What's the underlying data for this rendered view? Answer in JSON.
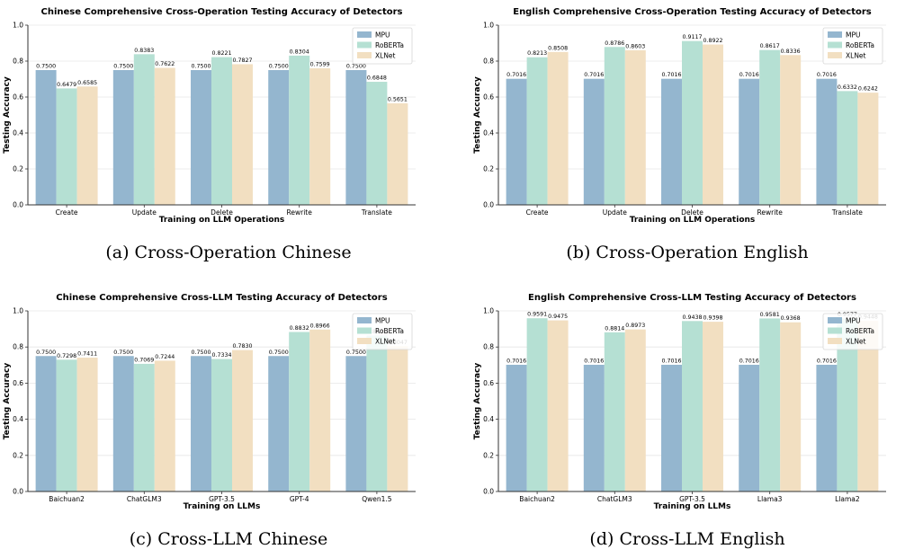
{
  "colors": {
    "MPU": "#94b6cf",
    "RoBERTa": "#b5e0d3",
    "XLNet": "#f2dfc1"
  },
  "captions": [
    "(a)  Cross-Operation Chinese",
    "(b)  Cross-Operation English",
    "(c)  Cross-LLM Chinese",
    "(d)  Cross-LLM English"
  ],
  "chart_data": [
    {
      "type": "bar",
      "title": "Chinese Comprehensive Cross-Operation Testing Accuracy of Detectors",
      "xlabel": "Training on LLM Operations",
      "ylabel": "Testing Accuracy",
      "ylim": [
        0,
        1.0
      ],
      "yticks": [
        "0.0",
        "0.2",
        "0.4",
        "0.6",
        "0.8",
        "1.0"
      ],
      "categories": [
        "Create",
        "Update",
        "Delete",
        "Rewrite",
        "Translate"
      ],
      "legend_position": "top-right",
      "series": [
        {
          "name": "MPU",
          "values": [
            0.75,
            0.75,
            0.75,
            0.75,
            0.75
          ],
          "labels": [
            "0.7500",
            "0.7500",
            "0.7500",
            "0.7500",
            "0.7500"
          ]
        },
        {
          "name": "RoBERTa",
          "values": [
            0.6479,
            0.8383,
            0.8221,
            0.8304,
            0.6848
          ],
          "labels": [
            "0.6479",
            "0.8383",
            "0.8221",
            "0.8304",
            "0.6848"
          ]
        },
        {
          "name": "XLNet",
          "values": [
            0.6585,
            0.7622,
            0.7827,
            0.7599,
            0.5651
          ],
          "labels": [
            "0.6585",
            "0.7622",
            "0.7827",
            "0.7599",
            "0.5651"
          ]
        }
      ]
    },
    {
      "type": "bar",
      "title": "English Comprehensive Cross-Operation Testing Accuracy of Detectors",
      "xlabel": "Training on LLM Operations",
      "ylabel": "Testing Accuracy",
      "ylim": [
        0,
        1.0
      ],
      "yticks": [
        "0.0",
        "0.2",
        "0.4",
        "0.6",
        "0.8",
        "1.0"
      ],
      "categories": [
        "Create",
        "Update",
        "Delete",
        "Rewrite",
        "Translate"
      ],
      "legend_position": "top-right",
      "series": [
        {
          "name": "MPU",
          "values": [
            0.7016,
            0.7016,
            0.7016,
            0.7016,
            0.7016
          ],
          "labels": [
            "0.7016",
            "0.7016",
            "0.7016",
            "0.7016",
            "0.7016"
          ]
        },
        {
          "name": "RoBERTa",
          "values": [
            0.8213,
            0.8786,
            0.9117,
            0.8617,
            0.6332
          ],
          "labels": [
            "0.8213",
            "0.8786",
            "0.9117",
            "0.8617",
            "0.6332"
          ]
        },
        {
          "name": "XLNet",
          "values": [
            0.8508,
            0.8603,
            0.8922,
            0.8336,
            0.6242
          ],
          "labels": [
            "0.8508",
            "0.8603",
            "0.8922",
            "0.8336",
            "0.6242"
          ]
        }
      ]
    },
    {
      "type": "bar",
      "title": "Chinese Comprehensive Cross-LLM Testing Accuracy of Detectors",
      "xlabel": "Training on LLMs",
      "ylabel": "Testing Accuracy",
      "ylim": [
        0,
        1.0
      ],
      "yticks": [
        "0.0",
        "0.2",
        "0.4",
        "0.6",
        "0.8",
        "1.0"
      ],
      "categories": [
        "Baichuan2",
        "ChatGLM3",
        "GPT-3.5",
        "GPT-4",
        "Qwen1.5"
      ],
      "legend_position": "top-right",
      "series": [
        {
          "name": "MPU",
          "values": [
            0.75,
            0.75,
            0.75,
            0.75,
            0.75
          ],
          "labels": [
            "0.7500",
            "0.7500",
            "0.7500",
            "0.7500",
            "0.7500"
          ]
        },
        {
          "name": "RoBERTa",
          "values": [
            0.7298,
            0.7069,
            0.7334,
            0.8832,
            0.8641
          ],
          "labels": [
            "0.7298",
            "0.7069",
            "0.7334",
            "0.8832",
            "0.8641"
          ]
        },
        {
          "name": "XLNet",
          "values": [
            0.7411,
            0.7244,
            0.783,
            0.8966,
            0.8047
          ],
          "labels": [
            "0.7411",
            "0.7244",
            "0.7830",
            "0.8966",
            "0.8047"
          ]
        }
      ]
    },
    {
      "type": "bar",
      "title": "English Comprehensive Cross-LLM Testing Accuracy of Detectors",
      "xlabel": "Training on LLMs",
      "ylabel": "Testing Accuracy",
      "ylim": [
        0,
        1.0
      ],
      "yticks": [
        "0.0",
        "0.2",
        "0.4",
        "0.6",
        "0.8",
        "1.0"
      ],
      "categories": [
        "Baichuan2",
        "ChatGLM3",
        "GPT-3.5",
        "Llama3",
        "Llama2"
      ],
      "legend_position": "top-right",
      "series": [
        {
          "name": "MPU",
          "values": [
            0.7016,
            0.7016,
            0.7016,
            0.7016,
            0.7016
          ],
          "labels": [
            "0.7016",
            "0.7016",
            "0.7016",
            "0.7016",
            "0.7016"
          ]
        },
        {
          "name": "RoBERTa",
          "values": [
            0.9591,
            0.8814,
            0.9438,
            0.9581,
            0.9577
          ],
          "labels": [
            "0.9591",
            "0.8814",
            "0.9438",
            "0.9581",
            "0.9577"
          ]
        },
        {
          "name": "XLNet",
          "values": [
            0.9475,
            0.8973,
            0.9398,
            0.9368,
            0.9448
          ],
          "labels": [
            "0.9475",
            "0.8973",
            "0.9398",
            "0.9368",
            "0.9448"
          ]
        }
      ]
    }
  ]
}
